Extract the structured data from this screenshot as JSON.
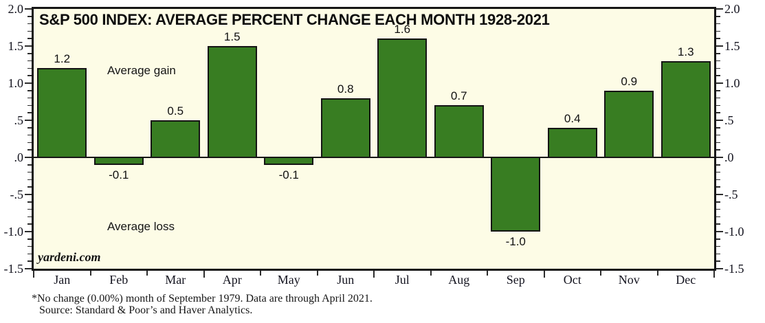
{
  "chart_data": {
    "type": "bar",
    "title": "S&P 500 INDEX: AVERAGE PERCENT CHANGE EACH MONTH 1928-2021",
    "categories": [
      "Jan",
      "Feb",
      "Mar",
      "Apr",
      "May",
      "Jun",
      "Jul",
      "Aug",
      "Sep",
      "Oct",
      "Nov",
      "Dec"
    ],
    "values": [
      1.2,
      -0.1,
      0.5,
      1.5,
      -0.1,
      0.8,
      1.6,
      0.7,
      -1.0,
      0.4,
      0.9,
      1.3
    ],
    "bar_labels": [
      "1.2",
      "-0.1",
      "0.5",
      "1.5",
      "-0.1",
      "0.8",
      "1.6",
      "0.7",
      "-1.0",
      "0.4",
      "0.9",
      "1.3"
    ],
    "xlabel": "",
    "ylabel": "",
    "ylim": [
      -1.5,
      2.0
    ],
    "y_tick_values": [
      2.0,
      1.5,
      1.0,
      0.5,
      0.0,
      -0.5,
      -1.0,
      -1.5
    ],
    "y_tick_labels": [
      "2.0",
      "1.5",
      "1.0",
      ".5",
      ".0",
      "-.5",
      "-1.0",
      "-1.5"
    ],
    "minor_tick_step": 0.1,
    "grid": "off",
    "legend": "none",
    "bar_color": "#387d22",
    "bar_border_color": "#141414",
    "plot_bg_color": "#fdfce6",
    "annotations": {
      "gain": "Average gain",
      "loss": "Average loss"
    },
    "watermark": "yardeni.com",
    "footnotes": [
      "*No change (0.00%) month of September 1979. Data are through April 2021.",
      "Source: Standard & Poor’s and Haver Analytics."
    ]
  }
}
